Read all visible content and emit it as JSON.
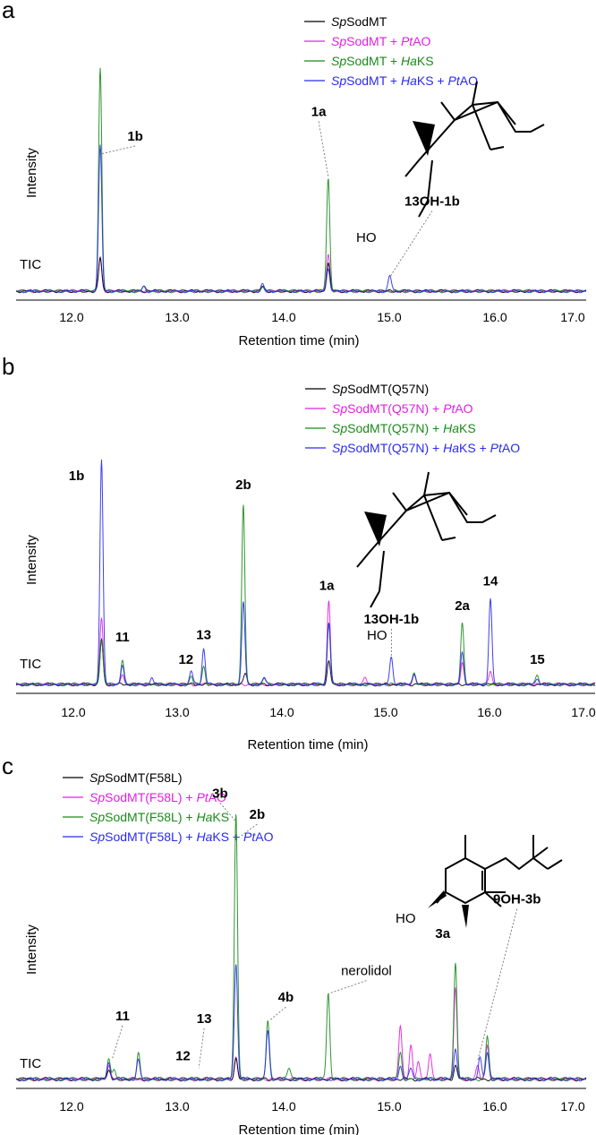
{
  "palette": {
    "black": "#000000",
    "magenta": "#e020e0",
    "green": "#1a8a1a",
    "blue": "#2a2aee"
  },
  "chart_data": [
    {
      "type": "line",
      "panel_label": "a",
      "xlabel": "Retention time (min)",
      "ylabel": "Intensity",
      "trace_label": "TIC",
      "xlim": [
        11.6,
        17.05
      ],
      "ticks": [
        "12.0",
        "13.0",
        "14.0",
        "15.0",
        "16.0",
        "17.0"
      ],
      "legend": [
        {
          "parts": [
            {
              "t": "Sp",
              "i": true
            },
            {
              "t": "SodMT"
            }
          ],
          "color": "#000000"
        },
        {
          "parts": [
            {
              "t": "Sp",
              "i": true
            },
            {
              "t": "SodMT + "
            },
            {
              "t": "Pt",
              "i": true
            },
            {
              "t": "AO"
            }
          ],
          "color": "#e020e0"
        },
        {
          "parts": [
            {
              "t": "Sp",
              "i": true
            },
            {
              "t": "SodMT + "
            },
            {
              "t": "Ha",
              "i": true
            },
            {
              "t": "KS"
            }
          ],
          "color": "#1a8a1a"
        },
        {
          "parts": [
            {
              "t": "Sp",
              "i": true
            },
            {
              "t": "SodMT + "
            },
            {
              "t": "Ha",
              "i": true
            },
            {
              "t": "KS + "
            },
            {
              "t": "Pt",
              "i": true
            },
            {
              "t": "AO"
            }
          ],
          "color": "#2a2aee"
        }
      ],
      "series": [
        {
          "color": "#000000",
          "peaks": [
            [
              12.27,
              0.15
            ],
            [
              14.42,
              0.13
            ],
            [
              13.8,
              0.02
            ]
          ]
        },
        {
          "color": "#e020e0",
          "peaks": [
            [
              12.27,
              0.15
            ],
            [
              14.42,
              0.16
            ],
            [
              13.8,
              0.02
            ]
          ]
        },
        {
          "color": "#1a8a1a",
          "peaks": [
            [
              12.27,
              1.0
            ],
            [
              14.42,
              0.5
            ],
            [
              13.8,
              0.02
            ],
            [
              12.68,
              0.02
            ]
          ]
        },
        {
          "color": "#2a2aee",
          "peaks": [
            [
              12.27,
              0.65
            ],
            [
              14.42,
              0.1
            ],
            [
              15.0,
              0.07
            ],
            [
              13.8,
              0.03
            ],
            [
              12.68,
              0.02
            ]
          ]
        }
      ],
      "annotations": [
        {
          "text": "1b",
          "x": 12.27,
          "tip_y": 0.62,
          "lx": 12.6,
          "ly": 0.68
        },
        {
          "text": "1a",
          "x": 14.42,
          "tip_y": 0.52,
          "lx": 14.33,
          "ly": 0.79
        },
        {
          "text": "13OH-1b",
          "x": 15.0,
          "tip_y": 0.07,
          "lx": 15.4,
          "ly": 0.39
        }
      ],
      "molecule": "m13OH",
      "molecule_label": "HO"
    },
    {
      "type": "line",
      "panel_label": "b",
      "xlabel": "Retention time (min)",
      "ylabel": "Intensity",
      "trace_label": "TIC",
      "xlim": [
        11.6,
        17.05
      ],
      "ticks": [
        "12.0",
        "13.0",
        "14.0",
        "15.0",
        "16.0",
        "17.0"
      ],
      "legend": [
        {
          "parts": [
            {
              "t": "Sp",
              "i": true
            },
            {
              "t": "SodMT(Q57N)"
            }
          ],
          "color": "#000000"
        },
        {
          "parts": [
            {
              "t": "Sp",
              "i": true
            },
            {
              "t": "SodMT(Q57N) + "
            },
            {
              "t": "Pt",
              "i": true
            },
            {
              "t": "AO"
            }
          ],
          "color": "#e020e0"
        },
        {
          "parts": [
            {
              "t": "Sp",
              "i": true
            },
            {
              "t": "SodMT(Q57N) + "
            },
            {
              "t": "Ha",
              "i": true
            },
            {
              "t": "KS"
            }
          ],
          "color": "#1a8a1a"
        },
        {
          "parts": [
            {
              "t": "Sp",
              "i": true
            },
            {
              "t": "SodMT(Q57N) + "
            },
            {
              "t": "Ha",
              "i": true
            },
            {
              "t": "KS + "
            },
            {
              "t": "Pt",
              "i": true
            },
            {
              "t": "AO"
            }
          ],
          "color": "#2a2aee"
        }
      ],
      "series": [
        {
          "color": "#000000",
          "peaks": [
            [
              12.27,
              0.2
            ],
            [
              14.45,
              0.1
            ],
            [
              13.65,
              0.05
            ]
          ]
        },
        {
          "color": "#e020e0",
          "peaks": [
            [
              12.27,
              0.3
            ],
            [
              14.45,
              0.37
            ],
            [
              12.47,
              0.05
            ],
            [
              15.73,
              0.1
            ],
            [
              16.0,
              0.06
            ],
            [
              14.8,
              0.03
            ],
            [
              15.27,
              0.04
            ]
          ]
        },
        {
          "color": "#1a8a1a",
          "peaks": [
            [
              12.27,
              0.2
            ],
            [
              13.63,
              0.81
            ],
            [
              14.45,
              0.28
            ],
            [
              15.73,
              0.27
            ],
            [
              12.47,
              0.11
            ],
            [
              13.25,
              0.08
            ],
            [
              13.13,
              0.04
            ],
            [
              16.45,
              0.04
            ],
            [
              15.27,
              0.05
            ],
            [
              13.83,
              0.03
            ]
          ]
        },
        {
          "color": "#2a2aee",
          "peaks": [
            [
              12.27,
              1.0
            ],
            [
              13.63,
              0.37
            ],
            [
              14.45,
              0.28
            ],
            [
              16.0,
              0.38
            ],
            [
              15.73,
              0.14
            ],
            [
              13.25,
              0.16
            ],
            [
              13.13,
              0.06
            ],
            [
              12.47,
              0.08
            ],
            [
              15.05,
              0.12
            ],
            [
              15.27,
              0.05
            ],
            [
              12.75,
              0.03
            ],
            [
              13.83,
              0.03
            ],
            [
              16.45,
              0.03
            ]
          ]
        }
      ],
      "annotations": [
        {
          "text": "1b",
          "x": 12.27,
          "lx": 12.03,
          "ly": 0.92
        },
        {
          "text": "11",
          "x": 12.47,
          "lx": 12.47,
          "ly": 0.2
        },
        {
          "text": "12",
          "x": 13.13,
          "lx": 13.08,
          "ly": 0.1
        },
        {
          "text": "13",
          "x": 13.25,
          "lx": 13.25,
          "ly": 0.21
        },
        {
          "text": "2b",
          "x": 13.63,
          "lx": 13.63,
          "ly": 0.88
        },
        {
          "text": "1a",
          "x": 14.45,
          "lx": 14.43,
          "ly": 0.43
        },
        {
          "text": "13OH-1b",
          "x": 15.05,
          "tip_y": 0.13,
          "lx": 15.05,
          "ly": 0.28
        },
        {
          "text": "2a",
          "x": 15.73,
          "lx": 15.73,
          "ly": 0.34
        },
        {
          "text": "14",
          "x": 16.0,
          "lx": 16.0,
          "ly": 0.45
        },
        {
          "text": "15",
          "x": 16.45,
          "lx": 16.45,
          "ly": 0.1
        }
      ],
      "molecule": "m13OH",
      "molecule_label": "HO"
    },
    {
      "type": "line",
      "panel_label": "c",
      "xlabel": "Retention time (min)",
      "ylabel": "Intensity",
      "trace_label": "TIC",
      "xlim": [
        11.6,
        17.05
      ],
      "ticks": [
        "12.0",
        "13.0",
        "14.0",
        "15.0",
        "16.0",
        "17.0"
      ],
      "legend": [
        {
          "parts": [
            {
              "t": "Sp",
              "i": true
            },
            {
              "t": "SodMT(F58L)"
            }
          ],
          "color": "#000000"
        },
        {
          "parts": [
            {
              "t": "Sp",
              "i": true
            },
            {
              "t": "SodMT(F58L) + "
            },
            {
              "t": "Pt",
              "i": true
            },
            {
              "t": "AO"
            }
          ],
          "color": "#e020e0"
        },
        {
          "parts": [
            {
              "t": "Sp",
              "i": true
            },
            {
              "t": "SodMT(F58L) + "
            },
            {
              "t": "Ha",
              "i": true
            },
            {
              "t": "KS"
            }
          ],
          "color": "#1a8a1a"
        },
        {
          "parts": [
            {
              "t": "Sp",
              "i": true
            },
            {
              "t": "SodMT(F58L) + "
            },
            {
              "t": "Ha",
              "i": true
            },
            {
              "t": "KS + "
            },
            {
              "t": "Pt",
              "i": true
            },
            {
              "t": "AO"
            }
          ],
          "color": "#2a2aee"
        }
      ],
      "series": [
        {
          "color": "#000000",
          "peaks": [
            [
              13.55,
              0.08
            ],
            [
              15.62,
              0.05
            ],
            [
              12.35,
              0.04
            ]
          ]
        },
        {
          "color": "#e020e0",
          "peaks": [
            [
              15.62,
              0.34
            ],
            [
              15.1,
              0.2
            ],
            [
              15.2,
              0.13
            ],
            [
              15.38,
              0.1
            ],
            [
              15.92,
              0.13
            ],
            [
              15.27,
              0.06
            ],
            [
              12.35,
              0.05
            ],
            [
              13.55,
              0.08
            ],
            [
              15.83,
              0.05
            ]
          ]
        },
        {
          "color": "#1a8a1a",
          "peaks": [
            [
              13.55,
              1.0
            ],
            [
              13.85,
              0.22
            ],
            [
              14.42,
              0.32
            ],
            [
              15.62,
              0.44
            ],
            [
              12.35,
              0.07
            ],
            [
              12.63,
              0.1
            ],
            [
              12.4,
              0.04
            ],
            [
              15.92,
              0.16
            ],
            [
              15.1,
              0.1
            ],
            [
              14.05,
              0.04
            ]
          ]
        },
        {
          "color": "#2a2aee",
          "peaks": [
            [
              13.55,
              0.44
            ],
            [
              13.85,
              0.18
            ],
            [
              15.62,
              0.12
            ],
            [
              12.35,
              0.06
            ],
            [
              12.63,
              0.07
            ],
            [
              15.85,
              0.08
            ],
            [
              15.92,
              0.1
            ],
            [
              15.1,
              0.05
            ],
            [
              15.2,
              0.04
            ]
          ]
        }
      ],
      "annotations": [
        {
          "text": "3b",
          "x": 13.55,
          "tip_y": 0.98,
          "lx": 13.4,
          "ly": 1.07
        },
        {
          "text": "2b",
          "x": 13.58,
          "tip_y": 0.92,
          "lx": 13.75,
          "ly": 0.99
        },
        {
          "text": "11",
          "x": 12.38,
          "tip_y": 0.08,
          "lx": 12.48,
          "ly": 0.23
        },
        {
          "text": "13",
          "x": 13.2,
          "tip_y": 0.05,
          "lx": 13.25,
          "ly": 0.22
        },
        {
          "text": "12",
          "x": 13.1,
          "lx": 13.05,
          "ly": 0.08
        },
        {
          "text": "4b",
          "x": 13.87,
          "tip_y": 0.23,
          "lx": 14.02,
          "ly": 0.3
        },
        {
          "text": "nerolidol",
          "x": 14.42,
          "tip_y": 0.33,
          "lx": 14.78,
          "ly": 0.4
        },
        {
          "text": "3a",
          "x": 15.62,
          "lx": 15.5,
          "ly": 0.54
        },
        {
          "text": "9OH-3b",
          "x": 15.83,
          "tip_y": 0.08,
          "lx": 16.2,
          "ly": 0.67
        }
      ],
      "molecule": "m9OH",
      "molecule_label": "HO"
    }
  ]
}
